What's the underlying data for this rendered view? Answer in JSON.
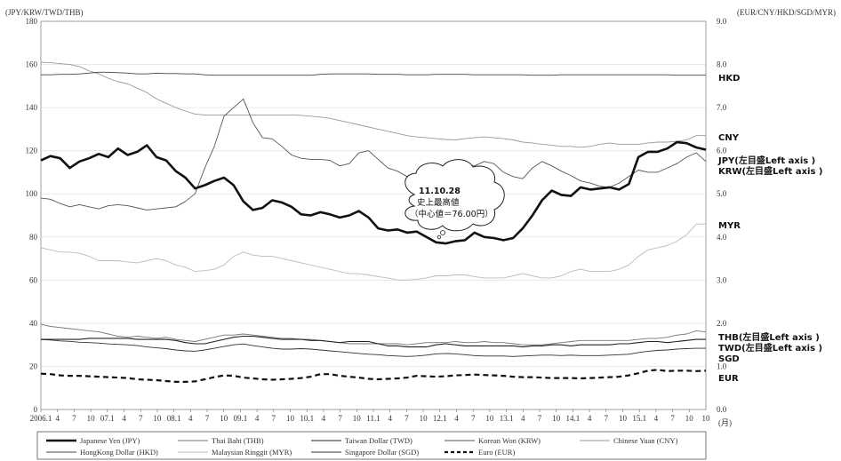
{
  "chart_data": {
    "type": "line",
    "left_axis_title": "(JPY/KRW/TWD/THB)",
    "right_axis_title": "(EUR/CNY/HKD/SGD/MYR)",
    "left_ylim": [
      0,
      180
    ],
    "right_ylim": [
      0.0,
      9.0
    ],
    "left_ticks": [
      "0",
      "20",
      "40",
      "60",
      "80",
      "100",
      "120",
      "140",
      "160",
      "180"
    ],
    "right_ticks": [
      "0.0",
      "1.0",
      "2.0",
      "3.0",
      "4.0",
      "5.0",
      "6.0",
      "7.0",
      "8.0",
      "9.0"
    ],
    "x_tick_labels": [
      "2006.1",
      "4",
      "7",
      "10",
      "07.1",
      "4",
      "7",
      "10",
      "08.1",
      "4",
      "7",
      "10",
      "09.1",
      "4",
      "7",
      "10",
      "10.1",
      "4",
      "7",
      "10",
      "11.1",
      "4",
      "7",
      "10",
      "12.1",
      "4",
      "7",
      "10",
      "13.1",
      "4",
      "7",
      "10",
      "14.1",
      "4",
      "7",
      "10",
      "15.1",
      "4",
      "7",
      "10"
    ],
    "x_unit": "(月)",
    "grid": true,
    "annotation": {
      "lines": [
        "11.10.28",
        "史上最高値",
        "（中心値＝76.00円）"
      ]
    },
    "series": [
      {
        "name": "Japanese Yen (JPY)",
        "axis": "left",
        "color": "#111111",
        "style": "thick",
        "values": [
          115.5,
          117.5,
          116.5,
          112.0,
          115.0,
          116.5,
          118.5,
          117.0,
          121.0,
          118.0,
          119.5,
          122.5,
          117.0,
          115.5,
          110.5,
          107.5,
          102.5,
          104.0,
          106.0,
          107.5,
          104.0,
          96.5,
          92.5,
          93.5,
          97.0,
          96.0,
          94.0,
          90.5,
          90.0,
          91.5,
          90.5,
          89.0,
          90.0,
          92.0,
          89.0,
          84.0,
          83.0,
          83.5,
          82.0,
          82.5,
          80.0,
          77.5,
          77.0,
          78.0,
          78.5,
          82.0,
          80.0,
          79.5,
          78.5,
          79.5,
          84.0,
          90.0,
          97.0,
          101.5,
          99.5,
          99.0,
          103.0,
          102.0,
          102.5,
          103.0,
          102.0,
          104.5,
          117.0,
          119.5,
          119.5,
          121.0,
          124.0,
          123.5,
          121.5,
          120.5
        ]
      },
      {
        "name": "Thai Baht (THB)",
        "axis": "left",
        "color": "#777777",
        "style": "thin",
        "values": [
          39.5,
          38.5,
          38.0,
          37.5,
          37.0,
          36.5,
          36.0,
          35.0,
          34.0,
          33.5,
          34.0,
          33.5,
          33.0,
          33.5,
          32.5,
          32.0,
          31.5,
          32.5,
          33.5,
          34.5,
          34.5,
          35.0,
          34.5,
          34.0,
          33.5,
          33.0,
          33.0,
          32.5,
          32.5,
          32.0,
          31.5,
          31.0,
          30.5,
          30.5,
          30.5,
          30.5,
          30.5,
          30.5,
          30.0,
          30.5,
          31.0,
          31.0,
          31.0,
          31.5,
          31.0,
          31.0,
          31.5,
          31.0,
          31.0,
          30.5,
          30.0,
          30.0,
          30.0,
          30.5,
          31.0,
          31.5,
          32.0,
          32.0,
          32.0,
          32.0,
          32.0,
          32.0,
          32.5,
          33.0,
          33.0,
          33.5,
          34.5,
          35.0,
          36.5,
          36.0
        ]
      },
      {
        "name": "Taiwan Dollar (TWD)",
        "axis": "left",
        "color": "#222222",
        "style": "medium",
        "values": [
          32.5,
          32.5,
          32.5,
          32.5,
          32.5,
          33.0,
          33.0,
          33.0,
          33.0,
          33.0,
          32.5,
          32.5,
          32.5,
          32.5,
          32.0,
          31.0,
          30.5,
          30.5,
          31.5,
          32.5,
          33.5,
          34.0,
          34.0,
          33.5,
          33.0,
          32.5,
          32.5,
          32.5,
          32.0,
          32.0,
          31.5,
          31.0,
          31.5,
          31.5,
          31.5,
          30.5,
          29.5,
          29.5,
          29.0,
          29.0,
          29.0,
          30.0,
          30.5,
          30.0,
          29.5,
          29.5,
          29.5,
          29.5,
          29.5,
          29.5,
          29.0,
          29.5,
          29.5,
          30.0,
          30.0,
          29.5,
          30.0,
          30.0,
          30.0,
          30.0,
          30.5,
          30.5,
          31.0,
          31.5,
          31.5,
          31.0,
          31.5,
          32.0,
          32.5,
          32.5
        ]
      },
      {
        "name": "Korean Won (KRW)",
        "axis": "left",
        "color": "#555555",
        "style": "thin",
        "values": [
          98.0,
          97.5,
          95.5,
          94.0,
          95.0,
          94.0,
          93.0,
          94.5,
          95.0,
          94.5,
          93.5,
          92.5,
          93.0,
          93.5,
          94.0,
          96.5,
          100.0,
          112.0,
          122.0,
          136.0,
          140.0,
          144.0,
          133.0,
          126.0,
          125.5,
          122.0,
          118.0,
          116.5,
          116.0,
          116.0,
          115.5,
          113.0,
          114.0,
          119.0,
          120.0,
          116.0,
          112.0,
          110.5,
          108.0,
          108.0,
          106.0,
          108.0,
          112.0,
          115.0,
          114.0,
          113.0,
          115.0,
          114.0,
          110.0,
          108.0,
          107.0,
          112.0,
          115.0,
          113.0,
          110.5,
          108.5,
          106.0,
          105.0,
          103.5,
          103.0,
          105.0,
          108.0,
          111.0,
          110.0,
          110.0,
          112.0,
          114.0,
          117.0,
          119.0,
          115.0
        ]
      },
      {
        "name": "Chinese Yuan (CNY)",
        "axis": "right",
        "color": "#999999",
        "style": "thin",
        "values": [
          8.05,
          8.04,
          8.02,
          8.0,
          7.95,
          7.85,
          7.78,
          7.68,
          7.6,
          7.55,
          7.45,
          7.35,
          7.2,
          7.1,
          7.0,
          6.92,
          6.85,
          6.83,
          6.83,
          6.83,
          6.83,
          6.83,
          6.83,
          6.83,
          6.83,
          6.83,
          6.83,
          6.82,
          6.8,
          6.78,
          6.75,
          6.7,
          6.65,
          6.6,
          6.55,
          6.5,
          6.45,
          6.4,
          6.35,
          6.32,
          6.3,
          6.28,
          6.26,
          6.25,
          6.28,
          6.3,
          6.32,
          6.3,
          6.28,
          6.25,
          6.2,
          6.18,
          6.15,
          6.13,
          6.1,
          6.1,
          6.08,
          6.1,
          6.15,
          6.18,
          6.15,
          6.15,
          6.15,
          6.18,
          6.2,
          6.2,
          6.22,
          6.25,
          6.35,
          6.35
        ]
      },
      {
        "name": "HongKong Dollar (HKD)",
        "axis": "right",
        "color": "#444444",
        "style": "thin",
        "values": [
          7.76,
          7.76,
          7.77,
          7.77,
          7.78,
          7.8,
          7.82,
          7.82,
          7.81,
          7.8,
          7.78,
          7.78,
          7.8,
          7.79,
          7.79,
          7.78,
          7.78,
          7.76,
          7.75,
          7.75,
          7.75,
          7.75,
          7.75,
          7.75,
          7.75,
          7.75,
          7.75,
          7.75,
          7.75,
          7.77,
          7.78,
          7.78,
          7.78,
          7.78,
          7.78,
          7.77,
          7.77,
          7.77,
          7.76,
          7.76,
          7.76,
          7.77,
          7.77,
          7.77,
          7.77,
          7.76,
          7.76,
          7.76,
          7.76,
          7.76,
          7.76,
          7.75,
          7.75,
          7.75,
          7.76,
          7.76,
          7.76,
          7.76,
          7.76,
          7.76,
          7.76,
          7.76,
          7.76,
          7.76,
          7.76,
          7.76,
          7.75,
          7.75,
          7.75,
          7.75
        ]
      },
      {
        "name": "Malaysian Ringgit (MYR)",
        "axis": "right",
        "color": "#bbbbbb",
        "style": "thin",
        "values": [
          3.75,
          3.7,
          3.65,
          3.65,
          3.62,
          3.55,
          3.45,
          3.45,
          3.45,
          3.42,
          3.4,
          3.45,
          3.5,
          3.45,
          3.35,
          3.3,
          3.2,
          3.22,
          3.25,
          3.35,
          3.55,
          3.65,
          3.58,
          3.55,
          3.55,
          3.5,
          3.45,
          3.4,
          3.35,
          3.3,
          3.25,
          3.2,
          3.15,
          3.15,
          3.12,
          3.08,
          3.05,
          3.0,
          3.0,
          3.02,
          3.05,
          3.1,
          3.1,
          3.12,
          3.12,
          3.08,
          3.05,
          3.05,
          3.05,
          3.1,
          3.15,
          3.1,
          3.05,
          3.05,
          3.1,
          3.2,
          3.25,
          3.2,
          3.2,
          3.2,
          3.25,
          3.35,
          3.55,
          3.7,
          3.75,
          3.8,
          3.9,
          4.05,
          4.3,
          4.3
        ]
      },
      {
        "name": "Singapore Dollar (SGD)",
        "axis": "right",
        "color": "#333333",
        "style": "thin",
        "values": [
          1.62,
          1.61,
          1.59,
          1.58,
          1.56,
          1.55,
          1.54,
          1.52,
          1.51,
          1.5,
          1.48,
          1.45,
          1.43,
          1.41,
          1.38,
          1.36,
          1.35,
          1.38,
          1.42,
          1.46,
          1.5,
          1.52,
          1.48,
          1.45,
          1.42,
          1.4,
          1.4,
          1.41,
          1.4,
          1.38,
          1.36,
          1.34,
          1.32,
          1.3,
          1.28,
          1.27,
          1.25,
          1.24,
          1.23,
          1.24,
          1.26,
          1.29,
          1.3,
          1.29,
          1.27,
          1.25,
          1.24,
          1.24,
          1.24,
          1.23,
          1.24,
          1.25,
          1.26,
          1.26,
          1.25,
          1.26,
          1.25,
          1.25,
          1.25,
          1.26,
          1.27,
          1.28,
          1.32,
          1.35,
          1.37,
          1.38,
          1.4,
          1.41,
          1.42,
          1.42
        ]
      },
      {
        "name": "Euro (EUR)",
        "axis": "right",
        "color": "#111111",
        "style": "dashed",
        "values": [
          0.83,
          0.82,
          0.79,
          0.78,
          0.78,
          0.77,
          0.76,
          0.75,
          0.74,
          0.73,
          0.7,
          0.69,
          0.68,
          0.66,
          0.64,
          0.64,
          0.65,
          0.7,
          0.75,
          0.79,
          0.78,
          0.74,
          0.72,
          0.7,
          0.69,
          0.7,
          0.71,
          0.73,
          0.76,
          0.82,
          0.82,
          0.78,
          0.76,
          0.74,
          0.71,
          0.7,
          0.71,
          0.72,
          0.74,
          0.78,
          0.77,
          0.76,
          0.77,
          0.79,
          0.8,
          0.81,
          0.8,
          0.79,
          0.78,
          0.76,
          0.75,
          0.75,
          0.74,
          0.73,
          0.73,
          0.73,
          0.72,
          0.73,
          0.74,
          0.75,
          0.76,
          0.79,
          0.84,
          0.9,
          0.92,
          0.89,
          0.9,
          0.9,
          0.89,
          0.9
        ]
      }
    ]
  },
  "labels": {
    "hkd": "HKD",
    "cny": "CNY",
    "jpy": "JPY(左目盛Left axis )",
    "krw": "KRW(左目盛Left axis )",
    "myr": "MYR",
    "thb": "THB(左目盛Left axis )",
    "twd": "TWD(左目盛Left axis )",
    "sgd": "SGD",
    "eur": "EUR"
  }
}
